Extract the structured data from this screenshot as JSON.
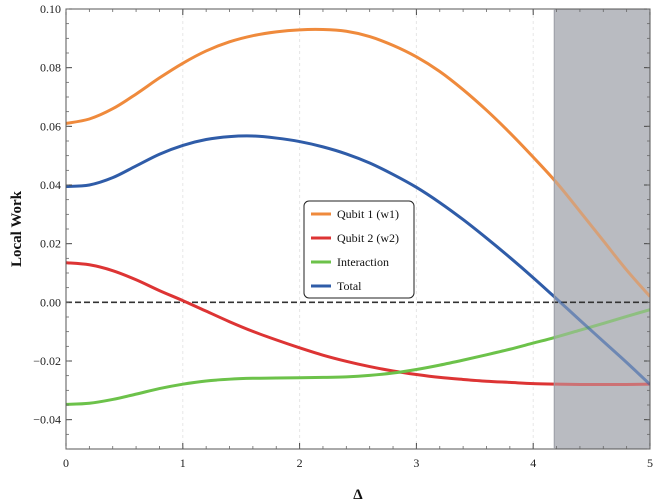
{
  "chart_data": {
    "type": "line",
    "xlabel": "Δ",
    "ylabel": "Local Work",
    "xlim": [
      0,
      5
    ],
    "ylim": [
      -0.05,
      0.1
    ],
    "x_ticks": [
      "0",
      "1",
      "2",
      "3",
      "4",
      "5"
    ],
    "y_ticks": [
      "-0.04",
      "-0.02",
      "0.00",
      "0.02",
      "0.04",
      "0.06",
      "0.08",
      "0.10"
    ],
    "y_tick_values": [
      -0.04,
      -0.02,
      0.0,
      0.02,
      0.04,
      0.06,
      0.08,
      0.1
    ],
    "legend_position": "center",
    "shaded_region": {
      "x_from": 4.18,
      "x_to": 5,
      "color": "#b9bbc1"
    },
    "reference_line": {
      "y": 0,
      "style": "dashed",
      "color": "#333333"
    },
    "grid": "vertical-light",
    "series": [
      {
        "name": "Qubit 1 (w1)",
        "color": "#ef8a3c",
        "x": [
          0,
          0.2,
          0.4,
          0.6,
          0.8,
          1.0,
          1.2,
          1.4,
          1.6,
          1.8,
          2.0,
          2.2,
          2.4,
          2.6,
          2.8,
          3.0,
          3.2,
          3.4,
          3.6,
          3.8,
          4.0,
          4.2,
          4.4,
          4.6,
          4.8,
          5.0
        ],
        "values": [
          0.061,
          0.0625,
          0.066,
          0.071,
          0.0765,
          0.0815,
          0.0857,
          0.0888,
          0.0909,
          0.0922,
          0.0929,
          0.093,
          0.0924,
          0.0906,
          0.0876,
          0.0837,
          0.0787,
          0.0725,
          0.0655,
          0.0578,
          0.0495,
          0.0408,
          0.031,
          0.021,
          0.011,
          0.002
        ]
      },
      {
        "name": "Qubit 2 (w2)",
        "color": "#dd3434",
        "x": [
          0,
          0.2,
          0.4,
          0.6,
          0.8,
          1.0,
          1.2,
          1.4,
          1.6,
          1.8,
          2.0,
          2.2,
          2.4,
          2.6,
          2.8,
          3.0,
          3.2,
          3.4,
          3.6,
          3.8,
          4.0,
          4.2,
          4.4,
          4.6,
          4.8,
          5.0
        ],
        "values": [
          0.0135,
          0.0128,
          0.0108,
          0.0077,
          0.004,
          0.0006,
          -0.003,
          -0.0066,
          -0.0099,
          -0.0128,
          -0.0155,
          -0.018,
          -0.0201,
          -0.0219,
          -0.0234,
          -0.0246,
          -0.0256,
          -0.0263,
          -0.0269,
          -0.0273,
          -0.0277,
          -0.0279,
          -0.028,
          -0.028,
          -0.028,
          -0.0279
        ]
      },
      {
        "name": "Interaction",
        "color": "#6cc24a",
        "x": [
          0,
          0.2,
          0.4,
          0.6,
          0.8,
          1.0,
          1.2,
          1.4,
          1.6,
          1.8,
          2.0,
          2.2,
          2.4,
          2.6,
          2.8,
          3.0,
          3.2,
          3.4,
          3.6,
          3.8,
          4.0,
          4.2,
          4.4,
          4.6,
          4.8,
          5.0
        ],
        "values": [
          -0.0348,
          -0.0344,
          -0.0331,
          -0.0313,
          -0.0294,
          -0.0279,
          -0.0268,
          -0.0262,
          -0.0259,
          -0.0258,
          -0.0257,
          -0.0256,
          -0.0254,
          -0.0249,
          -0.0241,
          -0.0229,
          -0.0214,
          -0.0197,
          -0.0179,
          -0.016,
          -0.0139,
          -0.0118,
          -0.0095,
          -0.0072,
          -0.0048,
          -0.0025
        ]
      },
      {
        "name": "Total",
        "color": "#2f5ca8",
        "x": [
          0,
          0.2,
          0.4,
          0.6,
          0.8,
          1.0,
          1.2,
          1.4,
          1.6,
          1.8,
          2.0,
          2.2,
          2.4,
          2.6,
          2.8,
          3.0,
          3.2,
          3.4,
          3.6,
          3.8,
          4.0,
          4.2,
          4.4,
          4.6,
          4.8,
          5.0
        ],
        "values": [
          0.0395,
          0.04,
          0.0425,
          0.0465,
          0.0505,
          0.0535,
          0.0555,
          0.0565,
          0.0567,
          0.056,
          0.0548,
          0.053,
          0.0506,
          0.0475,
          0.0436,
          0.0392,
          0.034,
          0.0282,
          0.0219,
          0.0153,
          0.0084,
          0.0012,
          -0.0061,
          -0.0133,
          -0.0205,
          -0.028
        ]
      }
    ]
  }
}
